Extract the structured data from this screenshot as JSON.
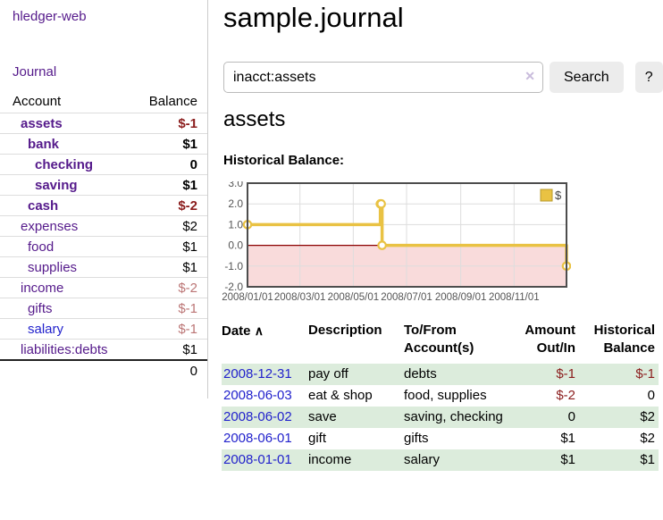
{
  "sidebar": {
    "brand": "hledger-web",
    "journal_link": "Journal",
    "accounts_table": {
      "columns": {
        "account": "Account",
        "balance": "Balance"
      },
      "rows": [
        {
          "account": "assets",
          "depth": 0,
          "account_style": "bold-purple",
          "balance": "$-1",
          "balance_style": "bold-negative"
        },
        {
          "account": "bank",
          "depth": 1,
          "account_style": "bold-purple",
          "balance": "$1",
          "balance_style": "bold"
        },
        {
          "account": "checking",
          "depth": 2,
          "account_style": "bold-purple",
          "balance": "0",
          "balance_style": "bold"
        },
        {
          "account": "saving",
          "depth": 2,
          "account_style": "bold-purple",
          "balance": "$1",
          "balance_style": "bold"
        },
        {
          "account": "cash",
          "depth": 1,
          "account_style": "bold-purple",
          "balance": "$-2",
          "balance_style": "bold-negative"
        },
        {
          "account": "expenses",
          "depth": 0,
          "account_style": "purple",
          "balance": "$2",
          "balance_style": "plain"
        },
        {
          "account": "food",
          "depth": 1,
          "account_style": "purple",
          "balance": "$1",
          "balance_style": "plain"
        },
        {
          "account": "supplies",
          "depth": 1,
          "account_style": "purple",
          "balance": "$1",
          "balance_style": "plain"
        },
        {
          "account": "income",
          "depth": 0,
          "account_style": "purple",
          "balance": "$-2",
          "balance_style": "soft-negative"
        },
        {
          "account": "gifts",
          "depth": 1,
          "account_style": "purple",
          "balance": "$-1",
          "balance_style": "soft-negative"
        },
        {
          "account": "salary",
          "depth": 1,
          "account_style": "blue",
          "balance": "$-1",
          "balance_style": "soft-negative"
        },
        {
          "account": "liabilities:debts",
          "depth": 0,
          "account_style": "purple",
          "balance": "$1",
          "balance_style": "plain"
        }
      ],
      "total": "0"
    }
  },
  "header": {
    "title": "sample.journal"
  },
  "search": {
    "value": "inacct:assets",
    "clear_icon": "✕",
    "search_button": "Search",
    "help_button": "?"
  },
  "account_view": {
    "heading": "assets",
    "chart_title": "Historical Balance:"
  },
  "chart_data": {
    "type": "line",
    "step": true,
    "title": "Historical Balance:",
    "series": [
      {
        "name": "$",
        "color": "#e9c243",
        "points": [
          [
            "2008-01-01",
            1.0
          ],
          [
            "2008-06-01",
            2.0
          ],
          [
            "2008-06-02",
            2.0
          ],
          [
            "2008-06-03",
            0.0
          ],
          [
            "2008-12-31",
            -1.0
          ]
        ]
      }
    ],
    "ylim": [
      -2.0,
      3.0
    ],
    "yticks": [
      3.0,
      2.0,
      1.0,
      0.0,
      -1.0,
      -2.0
    ],
    "xticks": [
      "2008/01/01",
      "2008/03/01",
      "2008/05/01",
      "2008/07/01",
      "2008/09/01",
      "2008/11/01"
    ],
    "grid": true,
    "negative_fill": "#f9dbdb",
    "zero_line_color": "#8b0000",
    "grid_color": "#dddddd",
    "border_color": "#4d4d4d",
    "axis_label_color": "#555555",
    "legend": {
      "label": "$",
      "position": "top-right",
      "swatch_color": "#e9c243",
      "swatch_border": "#b89b2e"
    }
  },
  "register_table": {
    "columns": {
      "date": "Date",
      "sort_icon": "∧",
      "description": "Description",
      "accounts": "To/From Account(s)",
      "amount": "Amount Out/In",
      "balance": "Historical Balance"
    },
    "rows": [
      {
        "date": "2008-12-31",
        "description": "pay off",
        "accounts": "debts",
        "amount": "$-1",
        "amount_negative": true,
        "balance": "$-1",
        "balance_negative": true,
        "shaded": true
      },
      {
        "date": "2008-06-03",
        "description": "eat & shop",
        "accounts": "food, supplies",
        "amount": "$-2",
        "amount_negative": true,
        "balance": "0",
        "balance_negative": false,
        "shaded": false
      },
      {
        "date": "2008-06-02",
        "description": "save",
        "accounts": "saving, checking",
        "amount": "0",
        "amount_negative": false,
        "balance": "$2",
        "balance_negative": false,
        "shaded": true
      },
      {
        "date": "2008-06-01",
        "description": "gift",
        "accounts": "gifts",
        "amount": "$1",
        "amount_negative": false,
        "balance": "$2",
        "balance_negative": false,
        "shaded": false
      },
      {
        "date": "2008-01-01",
        "description": "income",
        "accounts": "salary",
        "amount": "$1",
        "amount_negative": false,
        "balance": "$1",
        "balance_negative": false,
        "shaded": true
      }
    ]
  },
  "colors": {
    "link_purple": "#551a8b",
    "link_blue": "#2222cc",
    "negative_strong": "#8b1d1d",
    "negative_soft": "#bb7575",
    "row_stripe_green": "#dcecdc",
    "chart_gold": "#e9c243",
    "chart_negative_pink": "#f9dbdb"
  }
}
